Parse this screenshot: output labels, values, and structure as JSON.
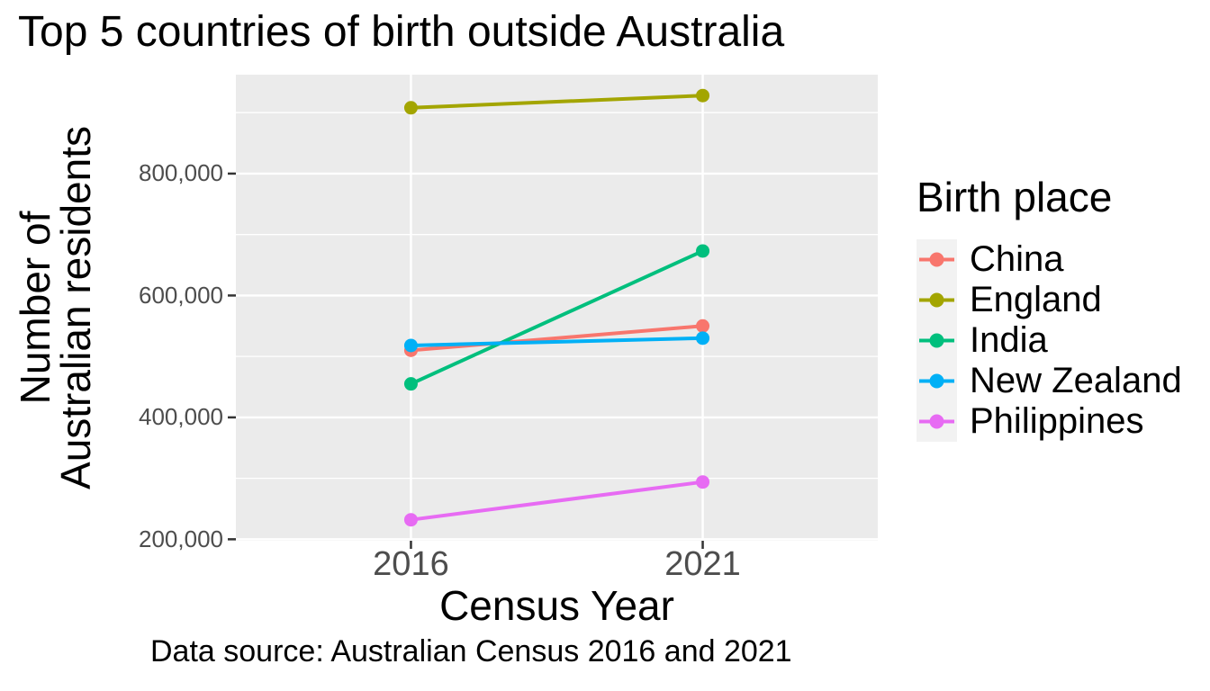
{
  "title": "Top 5 countries of birth outside Australia",
  "caption": "Data source: Australian Census 2016 and 2021",
  "axes": {
    "x_title": "Census Year",
    "y_title_line1": "Number of",
    "y_title_line2": "Australian residents",
    "x_ticks": [
      "2016",
      "2021"
    ],
    "y_ticks": [
      "800,000",
      "600,000",
      "400,000",
      "200,000"
    ]
  },
  "legend": {
    "title": "Birth place",
    "items": [
      {
        "label": "China",
        "color": "#F8766D"
      },
      {
        "label": "England",
        "color": "#A3A500"
      },
      {
        "label": "India",
        "color": "#00BF7D"
      },
      {
        "label": "New Zealand",
        "color": "#00B0F6"
      },
      {
        "label": "Philippines",
        "color": "#E76BF3"
      }
    ]
  },
  "colors": {
    "panel_background": "#EBEBEB",
    "gridline": "#FFFFFF",
    "tick_mark": "#333333",
    "tick_text": "#4D4D4D",
    "legend_key_background": "#F2F2F2"
  },
  "chart_data": {
    "type": "line",
    "title": "Top 5 countries of birth outside Australia",
    "xlabel": "Census Year",
    "ylabel": "Number of Australian residents",
    "caption": "Data source: Australian Census 2016 and 2021",
    "legend_title": "Birth place",
    "legend_position": "right",
    "x": [
      "2016",
      "2021"
    ],
    "series": [
      {
        "name": "China",
        "color": "#F8766D",
        "values": [
          510000,
          550000
        ]
      },
      {
        "name": "England",
        "color": "#A3A500",
        "values": [
          908000,
          928000
        ]
      },
      {
        "name": "India",
        "color": "#00BF7D",
        "values": [
          455000,
          673000
        ]
      },
      {
        "name": "New Zealand",
        "color": "#00B0F6",
        "values": [
          518000,
          530000
        ]
      },
      {
        "name": "Philippines",
        "color": "#E76BF3",
        "values": [
          232000,
          294000
        ]
      }
    ],
    "ylim": [
      197600,
      962300
    ],
    "y_major_gridlines": [
      800000,
      600000,
      400000,
      200000
    ],
    "y_minor_gridlines": [
      900000,
      700000,
      500000,
      300000
    ],
    "grid": true,
    "marker_radius": 7.5,
    "line_width": 4
  }
}
